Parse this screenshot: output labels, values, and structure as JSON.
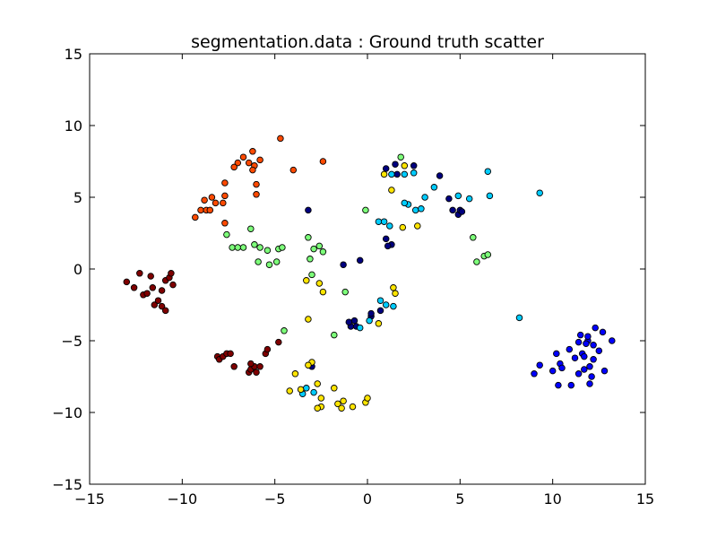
{
  "chart_data": {
    "type": "scatter",
    "title": "segmentation.data : Ground truth scatter",
    "xlabel": "",
    "ylabel": "",
    "xlim": [
      -15,
      15
    ],
    "ylim": [
      -15,
      15
    ],
    "xticks": [
      -15,
      -10,
      -5,
      0,
      5,
      10,
      15
    ],
    "yticks": [
      -15,
      -10,
      -5,
      0,
      5,
      10,
      15
    ],
    "xtick_labels": [
      "−15",
      "−10",
      "−5",
      "0",
      "5",
      "10",
      "15"
    ],
    "ytick_labels": [
      "−15",
      "−10",
      "−5",
      "0",
      "5",
      "10",
      "15"
    ],
    "grid": false,
    "legend": "none",
    "marker_edge_color": "#000000",
    "series": [
      {
        "color": "#00007f",
        "points": [
          [
            -3.2,
            4.1
          ],
          [
            -1.3,
            0.3
          ],
          [
            -0.4,
            0.6
          ],
          [
            -0.7,
            -3.6
          ],
          [
            -0.9,
            -4.0
          ],
          [
            -1.0,
            -3.7
          ],
          [
            -0.6,
            -4.0
          ],
          [
            0.2,
            -3.3
          ],
          [
            1.0,
            2.1
          ],
          [
            1.3,
            1.7
          ],
          [
            1.1,
            1.6
          ],
          [
            1.0,
            7.0
          ],
          [
            1.5,
            7.3
          ],
          [
            1.6,
            6.6
          ],
          [
            2.5,
            7.2
          ],
          [
            3.9,
            6.5
          ],
          [
            4.4,
            4.9
          ],
          [
            4.6,
            4.1
          ],
          [
            4.9,
            3.8
          ],
          [
            5.0,
            4.1
          ],
          [
            -3.0,
            -6.8
          ],
          [
            0.7,
            -2.9
          ],
          [
            0.2,
            -3.1
          ],
          [
            5.1,
            4.0
          ]
        ]
      },
      {
        "color": "#0000ff",
        "points": [
          [
            9.0,
            -7.3
          ],
          [
            9.3,
            -6.7
          ],
          [
            10.0,
            -7.1
          ],
          [
            10.2,
            -5.9
          ],
          [
            10.3,
            -8.1
          ],
          [
            10.4,
            -6.6
          ],
          [
            10.5,
            -6.9
          ],
          [
            10.9,
            -5.6
          ],
          [
            11.0,
            -8.1
          ],
          [
            11.2,
            -6.2
          ],
          [
            11.4,
            -5.1
          ],
          [
            11.4,
            -7.3
          ],
          [
            11.5,
            -4.6
          ],
          [
            11.6,
            -5.9
          ],
          [
            11.7,
            -6.1
          ],
          [
            11.7,
            -7.0
          ],
          [
            11.9,
            -5.0
          ],
          [
            11.9,
            -4.7
          ],
          [
            12.0,
            -6.8
          ],
          [
            12.1,
            -7.5
          ],
          [
            12.2,
            -6.3
          ],
          [
            12.2,
            -5.3
          ],
          [
            12.3,
            -4.1
          ],
          [
            12.5,
            -5.7
          ],
          [
            12.7,
            -4.4
          ],
          [
            12.8,
            -7.1
          ],
          [
            13.2,
            -5.0
          ],
          [
            12.0,
            -8.0
          ],
          [
            11.8,
            -5.2
          ]
        ]
      },
      {
        "color": "#00ccff",
        "points": [
          [
            0.6,
            3.3
          ],
          [
            0.9,
            3.3
          ],
          [
            1.2,
            3.0
          ],
          [
            1.3,
            6.6
          ],
          [
            2.0,
            6.6
          ],
          [
            2.2,
            4.5
          ],
          [
            2.5,
            6.7
          ],
          [
            2.6,
            4.1
          ],
          [
            2.9,
            4.2
          ],
          [
            3.1,
            5.0
          ],
          [
            3.6,
            5.7
          ],
          [
            4.9,
            5.1
          ],
          [
            5.5,
            4.9
          ],
          [
            6.5,
            6.8
          ],
          [
            6.6,
            5.1
          ],
          [
            9.3,
            5.3
          ],
          [
            8.2,
            -3.4
          ],
          [
            0.7,
            -2.2
          ],
          [
            1.0,
            -2.5
          ],
          [
            1.4,
            -2.6
          ],
          [
            0.1,
            -3.6
          ],
          [
            -0.4,
            -4.1
          ],
          [
            -3.3,
            -8.3
          ],
          [
            -2.9,
            -8.6
          ],
          [
            -3.5,
            -8.7
          ],
          [
            2.0,
            4.6
          ]
        ]
      },
      {
        "color": "#7dff7a",
        "points": [
          [
            -7.6,
            2.4
          ],
          [
            -7.3,
            1.5
          ],
          [
            -7.0,
            1.5
          ],
          [
            -6.7,
            1.5
          ],
          [
            -6.3,
            2.8
          ],
          [
            -6.1,
            1.7
          ],
          [
            -5.9,
            0.5
          ],
          [
            -5.8,
            1.5
          ],
          [
            -5.4,
            1.3
          ],
          [
            -5.3,
            0.3
          ],
          [
            -4.9,
            0.5
          ],
          [
            -4.8,
            1.4
          ],
          [
            -4.6,
            1.5
          ],
          [
            -3.2,
            2.2
          ],
          [
            -3.1,
            0.7
          ],
          [
            -2.9,
            1.4
          ],
          [
            -2.6,
            1.6
          ],
          [
            -2.4,
            1.2
          ],
          [
            -3.0,
            -0.4
          ],
          [
            -1.2,
            -1.6
          ],
          [
            -1.8,
            -4.6
          ],
          [
            -4.5,
            -4.3
          ],
          [
            -0.1,
            4.1
          ],
          [
            1.8,
            7.8
          ],
          [
            5.7,
            2.2
          ],
          [
            5.9,
            0.5
          ],
          [
            6.3,
            0.9
          ],
          [
            6.5,
            1.0
          ]
        ]
      },
      {
        "color": "#ffe500",
        "points": [
          [
            -3.2,
            -3.5
          ],
          [
            -3.3,
            -0.8
          ],
          [
            -2.6,
            -1.0
          ],
          [
            -2.4,
            -1.6
          ],
          [
            -3.0,
            -6.5
          ],
          [
            -3.2,
            -6.7
          ],
          [
            -3.6,
            -8.4
          ],
          [
            -2.7,
            -8.0
          ],
          [
            -2.5,
            -9.0
          ],
          [
            -2.5,
            -9.6
          ],
          [
            -3.9,
            -7.3
          ],
          [
            -4.2,
            -8.5
          ],
          [
            -2.7,
            -9.7
          ],
          [
            -1.8,
            -8.3
          ],
          [
            -1.6,
            -9.4
          ],
          [
            -1.4,
            -9.7
          ],
          [
            -1.3,
            -9.2
          ],
          [
            -0.8,
            -9.6
          ],
          [
            -0.1,
            -9.3
          ],
          [
            0.0,
            -9.0
          ],
          [
            0.6,
            -3.8
          ],
          [
            1.4,
            -1.3
          ],
          [
            1.5,
            -1.7
          ],
          [
            1.9,
            2.9
          ],
          [
            2.7,
            3.0
          ],
          [
            0.9,
            6.6
          ],
          [
            1.3,
            5.5
          ],
          [
            2.0,
            7.2
          ]
        ]
      },
      {
        "color": "#ff4a00",
        "points": [
          [
            -9.3,
            3.6
          ],
          [
            -9.0,
            4.1
          ],
          [
            -8.7,
            4.1
          ],
          [
            -8.8,
            4.8
          ],
          [
            -8.5,
            4.1
          ],
          [
            -8.4,
            5.0
          ],
          [
            -8.2,
            4.6
          ],
          [
            -7.8,
            4.6
          ],
          [
            -7.7,
            5.1
          ],
          [
            -7.7,
            3.2
          ],
          [
            -6.0,
            5.9
          ],
          [
            -6.0,
            5.2
          ],
          [
            -6.1,
            7.2
          ],
          [
            -6.2,
            6.9
          ],
          [
            -6.2,
            8.2
          ],
          [
            -6.4,
            7.4
          ],
          [
            -6.7,
            7.8
          ],
          [
            -7.0,
            7.4
          ],
          [
            -7.2,
            7.1
          ],
          [
            -7.7,
            6.0
          ],
          [
            -5.8,
            7.6
          ],
          [
            -4.7,
            9.1
          ],
          [
            -4.0,
            6.9
          ],
          [
            -2.4,
            7.5
          ]
        ]
      },
      {
        "color": "#7f0000",
        "points": [
          [
            -13.0,
            -0.9
          ],
          [
            -12.6,
            -1.3
          ],
          [
            -12.3,
            -0.3
          ],
          [
            -12.1,
            -1.8
          ],
          [
            -11.9,
            -1.7
          ],
          [
            -11.7,
            -0.5
          ],
          [
            -11.6,
            -1.3
          ],
          [
            -11.5,
            -2.5
          ],
          [
            -11.3,
            -2.2
          ],
          [
            -11.1,
            -2.6
          ],
          [
            -11.1,
            -1.5
          ],
          [
            -10.9,
            -2.9
          ],
          [
            -10.9,
            -0.8
          ],
          [
            -10.7,
            -0.6
          ],
          [
            -10.6,
            -0.3
          ],
          [
            -10.5,
            -1.1
          ],
          [
            -8.1,
            -6.1
          ],
          [
            -8.0,
            -6.3
          ],
          [
            -7.8,
            -6.1
          ],
          [
            -7.6,
            -5.9
          ],
          [
            -7.4,
            -5.9
          ],
          [
            -7.2,
            -6.8
          ],
          [
            -6.4,
            -7.2
          ],
          [
            -6.3,
            -7.0
          ],
          [
            -6.1,
            -6.8
          ],
          [
            -6.0,
            -7.2
          ],
          [
            -5.8,
            -6.8
          ],
          [
            -5.5,
            -5.9
          ],
          [
            -5.4,
            -5.6
          ],
          [
            -4.8,
            -5.1
          ],
          [
            -6.3,
            -6.6
          ]
        ]
      }
    ]
  }
}
